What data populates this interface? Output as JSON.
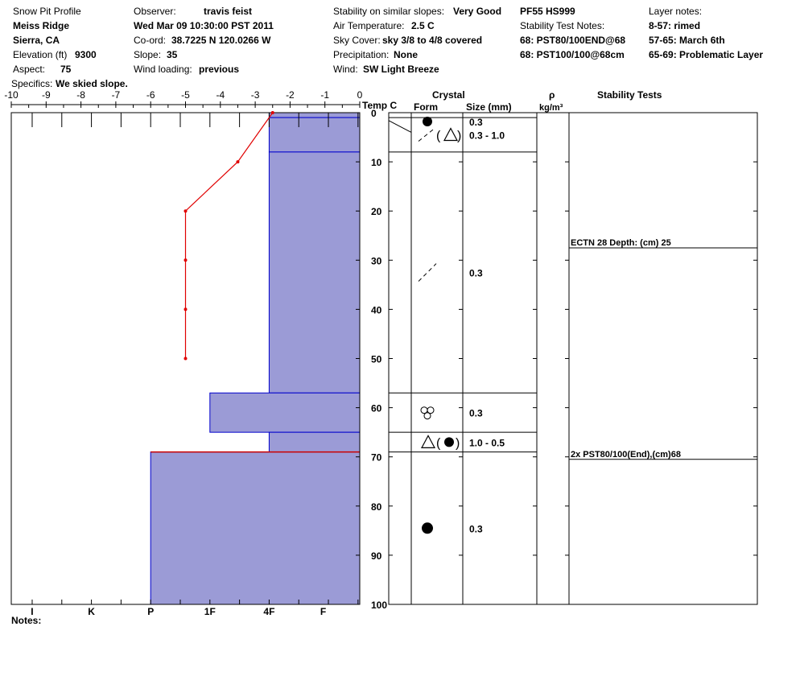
{
  "header": {
    "title": "Snow Pit Profile",
    "location": "Meiss Ridge",
    "region": "Sierra, CA",
    "elevation_label": "Elevation (ft)",
    "elevation_value": "9300",
    "aspect_label": "Aspect:",
    "aspect_value": "75",
    "specifics_label": "Specifics:",
    "specifics_value": "We skied slope.",
    "observer_label": "Observer:",
    "observer_value": "travis feist",
    "datetime": "Wed Mar 09 10:30:00 PST 2011",
    "coord_label": "Co-ord:",
    "coord_value": "38.7225 N 120.0266 W",
    "slope_label": "Slope:",
    "slope_value": "35",
    "wind_loading_label": "Wind loading:",
    "wind_loading_value": "previous",
    "stability_label": "Stability on similar slopes:",
    "stability_value": "Very Good",
    "air_temp_label": "Air Temperature:",
    "air_temp_value": "2.5 C",
    "sky_label": "Sky Cover:",
    "sky_value": "sky 3/8 to 4/8 covered",
    "precip_label": "Precipitation:",
    "precip_value": "None",
    "wind_label": "Wind:",
    "wind_value": "SW Light Breeze",
    "pit_id": "PF55 HS999",
    "stab_notes_label": "Stability Test Notes:",
    "stab_note_1": "68: PST80/100END@68",
    "stab_note_2": "68: PST100/100@68cm",
    "layer_notes_label": "Layer notes:",
    "layer_notes": [
      {
        "range": "8-57:",
        "text": "rimed"
      },
      {
        "range": "57-65:",
        "text": "March 6th"
      },
      {
        "range": "65-69:",
        "text": "Problematic Layer"
      }
    ]
  },
  "columns": {
    "temp": "Temp C",
    "crystal": "Crystal",
    "form": "Form",
    "size": "Size (mm)",
    "rho": "ρ",
    "density_unit": "kg/m³",
    "stability_tests": "Stability Tests"
  },
  "notes_label": "Notes:",
  "colors": {
    "layer_fill": "#9b9bd6",
    "layer_stroke": "#0000cc",
    "temp_line": "#e00000",
    "weak_layer": "#cc0000"
  },
  "chart_data": {
    "type": "snow-profile",
    "temp_axis": {
      "min": -10,
      "max": 0,
      "ticks": [
        "-10",
        "-9",
        "-8",
        "-7",
        "-6",
        "-5",
        "-4",
        "-3",
        "-2",
        "-1",
        "0"
      ]
    },
    "depth_axis": {
      "min": 0,
      "max": 100,
      "ticks": [
        "0",
        "10",
        "20",
        "30",
        "40",
        "50",
        "60",
        "70",
        "80",
        "90",
        "100"
      ]
    },
    "hardness_labels": [
      "I",
      "K",
      "P",
      "1F",
      "4F",
      "F"
    ],
    "hardness_scale": [
      {
        "label": "I",
        "temp": -9.4
      },
      {
        "label": "K",
        "temp": -7.7
      },
      {
        "label": "P",
        "temp": -6.0
      },
      {
        "label": "1F",
        "temp": -4.3
      },
      {
        "label": "4F",
        "temp": -2.6
      },
      {
        "label": "F",
        "temp": -1.05
      }
    ],
    "temperature_profile": [
      {
        "depth": 0,
        "temp": -2.5
      },
      {
        "depth": 10,
        "temp": -3.5
      },
      {
        "depth": 20,
        "temp": -5.0
      },
      {
        "depth": 30,
        "temp": -5.0
      },
      {
        "depth": 40,
        "temp": -5.0
      },
      {
        "depth": 50,
        "temp": -5.0
      }
    ],
    "layers": [
      {
        "top": 0,
        "bottom": 1,
        "hardness": "4F",
        "form": "round",
        "size": "0.3"
      },
      {
        "top": 1,
        "bottom": 8,
        "hardness": "4F",
        "form": "facet-mixed",
        "size": "0.3 - 1.0"
      },
      {
        "top": 8,
        "bottom": 57,
        "hardness": "4F",
        "form": "dash",
        "size": "0.3"
      },
      {
        "top": 57,
        "bottom": 65,
        "hardness": "1F",
        "form": "graupel",
        "size": "0.3"
      },
      {
        "top": 65,
        "bottom": 69,
        "hardness": "4F",
        "form": "facet-round",
        "size": "1.0 - 0.5"
      },
      {
        "top": 69,
        "bottom": 100,
        "hardness": "P",
        "form": "round",
        "size": "0.3"
      }
    ],
    "stability_tests": [
      {
        "depth": 27.5,
        "text": "ECTN 28   Depth: (cm) 25"
      },
      {
        "depth": 70.5,
        "text": "2x PST80/100(End),(cm)68"
      }
    ]
  }
}
